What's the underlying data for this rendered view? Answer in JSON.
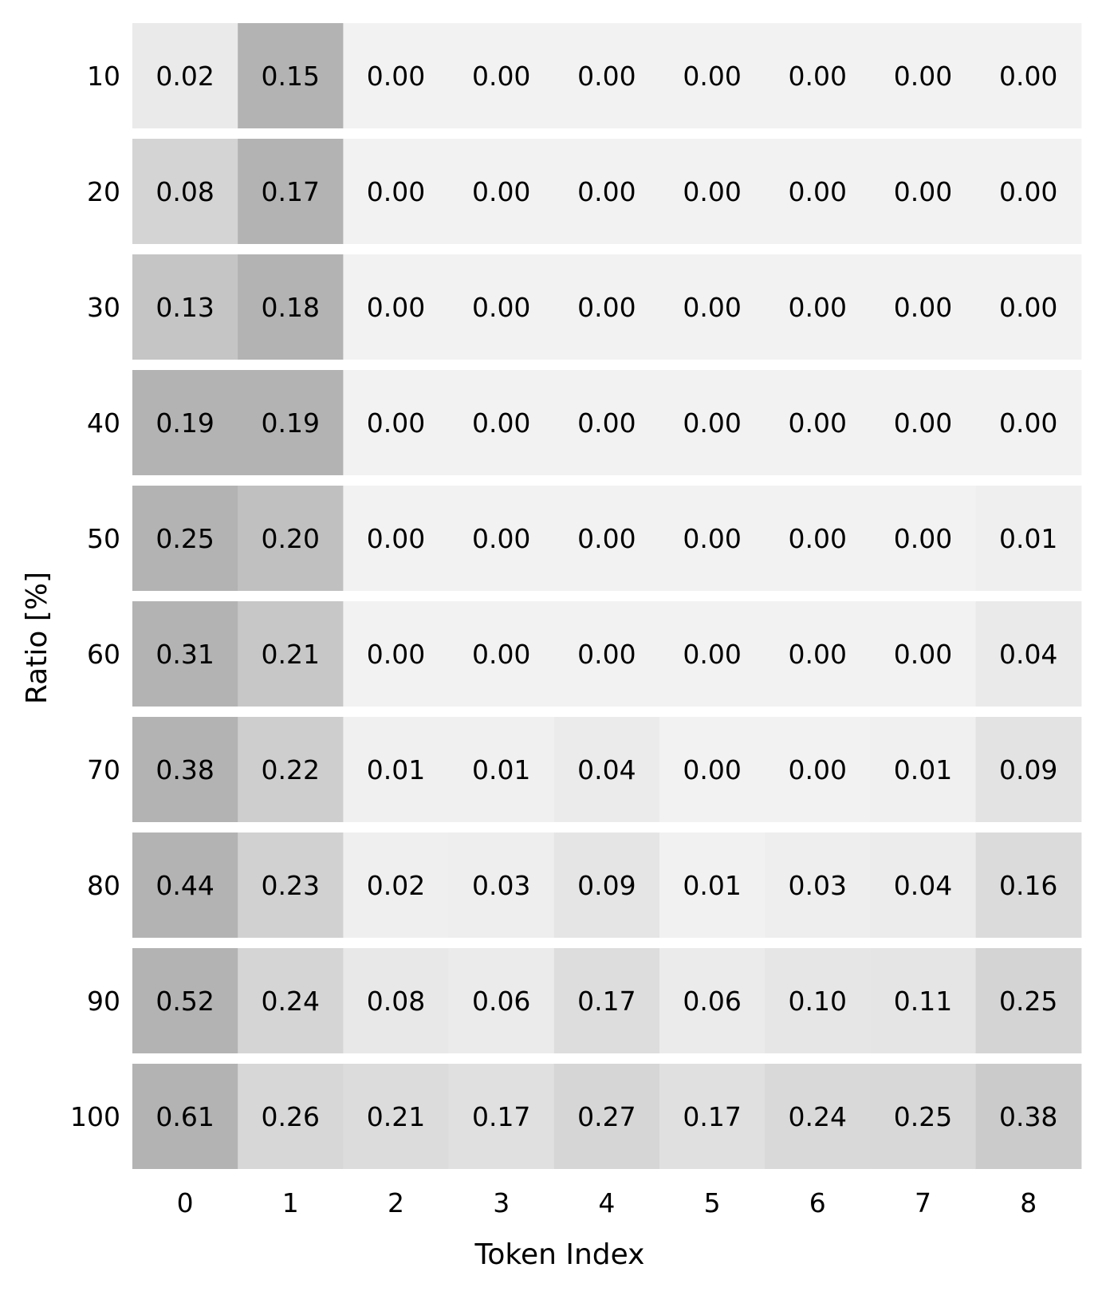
{
  "chart_data": {
    "type": "heatmap",
    "title": "",
    "xlabel": "Token Index",
    "ylabel": "Ratio [%]",
    "x_categories": [
      "0",
      "1",
      "2",
      "3",
      "4",
      "5",
      "6",
      "7",
      "8"
    ],
    "y_categories": [
      "10",
      "20",
      "30",
      "40",
      "50",
      "60",
      "70",
      "80",
      "90",
      "100"
    ],
    "values": [
      [
        0.02,
        0.15,
        0.0,
        0.0,
        0.0,
        0.0,
        0.0,
        0.0,
        0.0
      ],
      [
        0.08,
        0.17,
        0.0,
        0.0,
        0.0,
        0.0,
        0.0,
        0.0,
        0.0
      ],
      [
        0.13,
        0.18,
        0.0,
        0.0,
        0.0,
        0.0,
        0.0,
        0.0,
        0.0
      ],
      [
        0.19,
        0.19,
        0.0,
        0.0,
        0.0,
        0.0,
        0.0,
        0.0,
        0.0
      ],
      [
        0.25,
        0.2,
        0.0,
        0.0,
        0.0,
        0.0,
        0.0,
        0.0,
        0.01
      ],
      [
        0.31,
        0.21,
        0.0,
        0.0,
        0.0,
        0.0,
        0.0,
        0.0,
        0.04
      ],
      [
        0.38,
        0.22,
        0.01,
        0.01,
        0.04,
        0.0,
        0.0,
        0.01,
        0.09
      ],
      [
        0.44,
        0.23,
        0.02,
        0.03,
        0.09,
        0.01,
        0.03,
        0.04,
        0.16
      ],
      [
        0.52,
        0.24,
        0.08,
        0.06,
        0.17,
        0.06,
        0.1,
        0.11,
        0.25
      ],
      [
        0.61,
        0.26,
        0.21,
        0.17,
        0.27,
        0.17,
        0.24,
        0.25,
        0.38
      ]
    ],
    "value_format": "0.00",
    "colors": {
      "light": "#f2f2f2",
      "dark": "#b3b3b3",
      "row_gap": "#ffffff"
    },
    "grid": false,
    "colorbar": false,
    "color_scale": "normalized per row"
  }
}
